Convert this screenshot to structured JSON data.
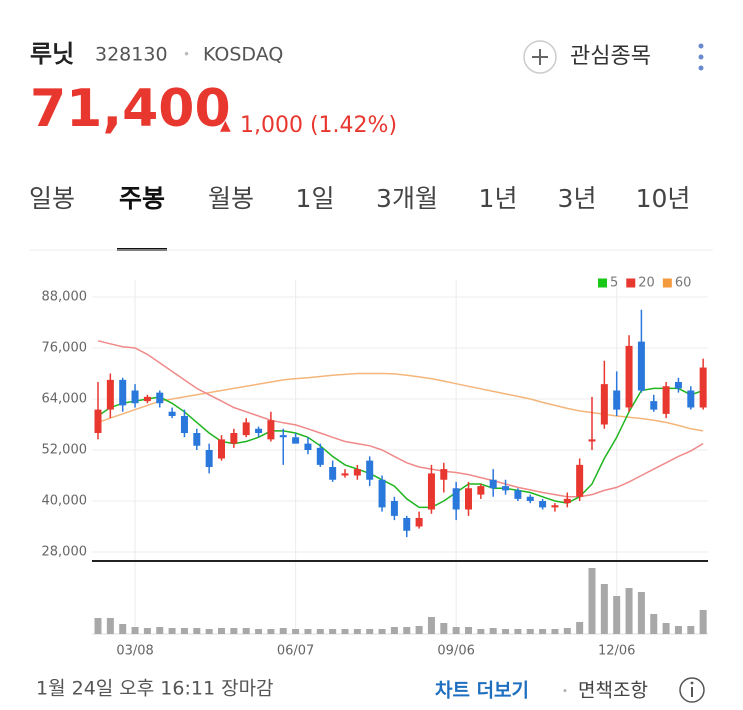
{
  "header": {
    "name": "루닛",
    "code": "328130",
    "separator": "•",
    "market": "KOSDAQ",
    "watch": "관심종목",
    "price": "71,400",
    "arrow": "▲",
    "change": "1,000 (1.42%)"
  },
  "tabs": {
    "items": [
      "일봉",
      "주봉",
      "월봉",
      "1일",
      "3개월",
      "1년",
      "3년",
      "10년"
    ],
    "selected": "주봉"
  },
  "footer": {
    "timestamp": "1월 24일 오후 16:11 장마감",
    "more": "차트 더보기",
    "separator": "•",
    "disclaimer": "면책조항"
  },
  "chart_data": {
    "type": "candlestick",
    "categories": [
      null,
      null,
      null,
      "03/08",
      null,
      null,
      null,
      null,
      null,
      null,
      null,
      null,
      null,
      null,
      null,
      null,
      "06/07",
      null,
      null,
      null,
      null,
      null,
      null,
      null,
      null,
      null,
      null,
      null,
      null,
      "09/06",
      null,
      null,
      null,
      null,
      null,
      null,
      null,
      null,
      null,
      null,
      null,
      null,
      "12/06",
      null,
      null,
      null,
      null,
      null,
      null,
      null
    ],
    "open": [
      56000,
      61500,
      68500,
      66000,
      63500,
      65500,
      61000,
      60000,
      56000,
      52000,
      50000,
      53500,
      55500,
      57000,
      54500,
      55500,
      55000,
      53500,
      52500,
      48000,
      46000,
      46000,
      49500,
      45000,
      40000,
      36000,
      34000,
      38000,
      45000,
      43000,
      38000,
      41500,
      45000,
      43500,
      42500,
      41000,
      40000,
      38500,
      39500,
      41000,
      54000,
      58000,
      66000,
      62000,
      77500,
      63500,
      60500,
      68000,
      66000,
      62000
    ],
    "high": [
      68000,
      70000,
      69000,
      67500,
      65000,
      66000,
      62000,
      61500,
      57000,
      53500,
      55500,
      57000,
      59500,
      57500,
      61000,
      57000,
      56000,
      55000,
      53500,
      49500,
      47500,
      48500,
      50500,
      46000,
      41000,
      36500,
      37500,
      48500,
      49000,
      44500,
      44500,
      44000,
      47500,
      45000,
      43000,
      41500,
      40500,
      39500,
      42000,
      50000,
      64500,
      73000,
      70500,
      79000,
      85000,
      65000,
      68000,
      69000,
      67000,
      73500
    ],
    "low": [
      54500,
      59500,
      61000,
      62000,
      63000,
      62000,
      59500,
      55000,
      52000,
      46500,
      49500,
      52500,
      55000,
      55000,
      54000,
      48500,
      53500,
      51000,
      48000,
      44500,
      45500,
      45000,
      43500,
      37500,
      35500,
      31500,
      33500,
      37000,
      42000,
      35500,
      36500,
      40500,
      41000,
      41500,
      40000,
      39500,
      38000,
      37500,
      38500,
      40000,
      52000,
      57000,
      60000,
      61000,
      65500,
      61000,
      59500,
      65500,
      61500,
      61500
    ],
    "close": [
      61500,
      68500,
      62500,
      63000,
      64500,
      63000,
      60000,
      56000,
      53000,
      48000,
      54500,
      56000,
      58500,
      56000,
      59000,
      55000,
      53500,
      52000,
      48500,
      45000,
      46500,
      47500,
      45000,
      38500,
      36500,
      33000,
      36000,
      46500,
      47500,
      38000,
      43000,
      43500,
      43000,
      42500,
      40500,
      40000,
      38500,
      39000,
      40500,
      48500,
      54500,
      67500,
      61500,
      76500,
      66000,
      61500,
      67000,
      66500,
      62000,
      71400
    ],
    "up_color": "#e8372f",
    "down_color": "#2a78dc",
    "series": [
      {
        "name": "5",
        "color": "#1fb51f",
        "values": [
          60000,
          62000,
          63000,
          63500,
          64000,
          64500,
          63000,
          61000,
          58500,
          56000,
          54000,
          53500,
          54000,
          55000,
          56500,
          56500,
          56000,
          55000,
          53000,
          50500,
          48500,
          47500,
          46500,
          45000,
          43500,
          40500,
          38500,
          38500,
          40000,
          42000,
          44000,
          44000,
          43000,
          43000,
          42500,
          42000,
          41000,
          40000,
          39500,
          41000,
          44000,
          50000,
          55000,
          61000,
          66000,
          66500,
          66500,
          66500,
          65000,
          66000
        ]
      },
      {
        "name": "20",
        "color": "#f08a8a",
        "values": [
          77700,
          77000,
          76300,
          76000,
          74500,
          72500,
          70500,
          68500,
          66500,
          65000,
          63500,
          62000,
          61000,
          60000,
          59000,
          58400,
          57900,
          57000,
          56000,
          55000,
          54000,
          53500,
          53000,
          52000,
          50500,
          49000,
          48000,
          47500,
          47000,
          46700,
          46200,
          45500,
          44800,
          44000,
          43200,
          42600,
          42000,
          41500,
          41000,
          41000,
          41500,
          42500,
          43200,
          44500,
          46000,
          47500,
          49000,
          50500,
          51800,
          53500
        ]
      },
      {
        "name": "60",
        "color": "#f5b57a",
        "values": [
          58500,
          59500,
          60500,
          61500,
          62500,
          63500,
          64000,
          64500,
          65000,
          65500,
          66000,
          66500,
          67000,
          67500,
          68000,
          68500,
          68800,
          69000,
          69300,
          69600,
          69800,
          70000,
          70000,
          70000,
          69900,
          69600,
          69200,
          68800,
          68200,
          67600,
          67000,
          66400,
          65800,
          65200,
          64600,
          64000,
          63200,
          62500,
          61800,
          61200,
          60800,
          60400,
          60000,
          59700,
          59400,
          59000,
          58500,
          57800,
          57000,
          56500
        ]
      }
    ],
    "legend_colors": [
      "#17c817",
      "#e8372f",
      "#f39a3c"
    ],
    "volume": {
      "values": [
        16,
        16,
        10,
        7,
        6,
        7,
        6,
        6,
        6,
        5,
        6,
        6,
        6,
        5,
        5,
        6,
        5,
        5,
        5,
        5,
        5,
        5,
        5,
        5,
        7,
        7,
        8,
        17,
        11,
        7,
        7,
        5,
        6,
        5,
        5,
        5,
        5,
        5,
        6,
        12,
        66,
        50,
        38,
        46,
        42,
        20,
        11,
        8,
        8,
        24
      ],
      "color": "#a8a8a8",
      "ylim": [
        0,
        70
      ]
    },
    "ylim": [
      26000,
      92000
    ],
    "yticks": [
      {
        "value": 28000,
        "label": "28,000"
      },
      {
        "value": 40000,
        "label": "40,000"
      },
      {
        "value": 52000,
        "label": "52,000"
      },
      {
        "value": 64000,
        "label": "64,000"
      },
      {
        "value": 76000,
        "label": "76,000"
      },
      {
        "value": 88000,
        "label": "88,000"
      }
    ],
    "grid": true,
    "legend": "top-right"
  }
}
